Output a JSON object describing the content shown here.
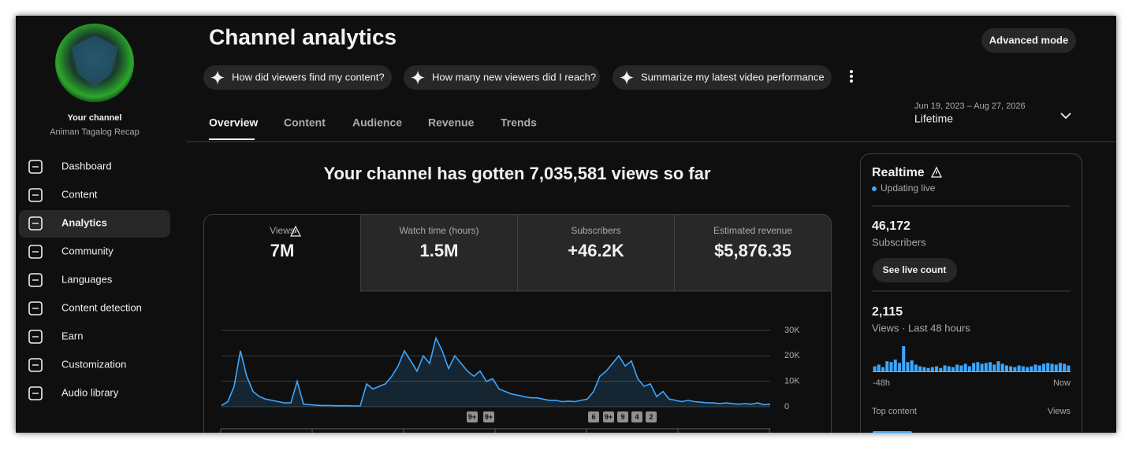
{
  "sidebar": {
    "channel_label": "Your channel",
    "channel_name": "Animan Tagalog Recap",
    "nav": [
      "Dashboard",
      "Content",
      "Analytics",
      "Community",
      "Languages",
      "Content detection",
      "Earn",
      "Customization",
      "Audio library"
    ]
  },
  "header": {
    "title": "Channel analytics",
    "advanced_mode": "Advanced mode",
    "suggestions": [
      "How did viewers find my content?",
      "How many new viewers did I reach?",
      "Summarize my latest video performance"
    ],
    "tabs": [
      "Overview",
      "Content",
      "Audience",
      "Revenue",
      "Trends"
    ],
    "date_range": "Jun 19, 2023 – Aug 27, 2026",
    "period": "Lifetime"
  },
  "headline": "Your channel has gotten 7,035,581 views so far",
  "metrics": [
    {
      "label": "Views",
      "value": "7M"
    },
    {
      "label": "Watch time (hours)",
      "value": "1.5M"
    },
    {
      "label": "Subscribers",
      "value": "+46.2K"
    },
    {
      "label": "Estimated revenue",
      "value": "$5,876.35"
    }
  ],
  "badges": [
    "9+",
    "9+",
    "6",
    "9+",
    "9",
    "4",
    "2"
  ],
  "chart_data": [
    {
      "type": "line",
      "color": "#3ea6ff",
      "ylim": [
        0,
        30000
      ],
      "yticks": [
        0,
        {
          "value": 10000,
          "label": "10K"
        },
        {
          "value": 20000,
          "label": "20K"
        },
        {
          "value": 30000,
          "label": "30K"
        }
      ],
      "grid": true,
      "values": [
        500,
        2000,
        8000,
        22000,
        12000,
        6000,
        4000,
        3000,
        2500,
        2000,
        1500,
        1500,
        10000,
        1000,
        800,
        600,
        500,
        500,
        400,
        400,
        400,
        300,
        300,
        9000,
        7000,
        8000,
        9000,
        12000,
        16000,
        22000,
        18000,
        14000,
        20000,
        17000,
        27000,
        22000,
        15000,
        20000,
        17000,
        14000,
        12000,
        14000,
        10000,
        11000,
        7000,
        6000,
        5000,
        4500,
        4000,
        3500,
        3500,
        3000,
        2500,
        2500,
        2000,
        2200,
        2000,
        2500,
        3000,
        6000,
        12000,
        14000,
        17000,
        20000,
        16000,
        18000,
        11000,
        8000,
        9000,
        4000,
        6000,
        3000,
        2500,
        2000,
        2500,
        2000,
        1800,
        1500,
        1500,
        1200,
        1500,
        1200,
        1000,
        1200,
        1000,
        1500,
        800,
        1000
      ]
    },
    {
      "type": "bar",
      "color": "#3ea6ff",
      "values": [
        30,
        40,
        25,
        60,
        55,
        70,
        50,
        150,
        55,
        65,
        40,
        30,
        25,
        20,
        25,
        30,
        20,
        35,
        30,
        25,
        40,
        35,
        45,
        30,
        50,
        55,
        45,
        50,
        55,
        40,
        60,
        45,
        35,
        30,
        25,
        35,
        30,
        25,
        30,
        40,
        35,
        45,
        50,
        45,
        40,
        50,
        45,
        35
      ],
      "axis_labels": [
        "-48h",
        "Now"
      ]
    }
  ],
  "realtime": {
    "title": "Realtime",
    "status": "Updating live",
    "subscribers": "46,172",
    "subscribers_label": "Subscribers",
    "live_count_button": "See live count",
    "views": "2,115",
    "views_label": "Views · Last 48 hours",
    "top_content": "Top content",
    "top_content_metric": "Views"
  }
}
